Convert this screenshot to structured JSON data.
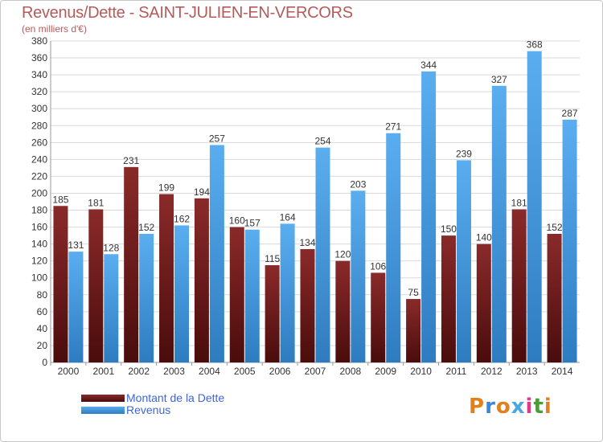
{
  "title": "Revenus/Dette - SAINT-JULIEN-EN-VERCORS",
  "unit_label": "(en milliers d'€)",
  "legend": [
    {
      "label": "Montant de la Dette",
      "color": "#7a1c1c"
    },
    {
      "label": "Revenus",
      "color": "#3f97dc"
    }
  ],
  "logo": {
    "text": "Proxiti",
    "colors": [
      "#e2801f",
      "#3a86d8",
      "#e2801f",
      "#49a8e0",
      "#e23a8a",
      "#4a9b3a",
      "#e2801f"
    ]
  },
  "chart_data": {
    "type": "bar",
    "title": "Revenus/Dette - SAINT-JULIEN-EN-VERCORS",
    "ylabel": "(en milliers d'€)",
    "xlabel": "",
    "categories": [
      "2000",
      "2001",
      "2002",
      "2003",
      "2004",
      "2005",
      "2006",
      "2007",
      "2008",
      "2009",
      "2010",
      "2011",
      "2012",
      "2013",
      "2014"
    ],
    "ylim": [
      0,
      380
    ],
    "ytick_step": 20,
    "grid": true,
    "series": [
      {
        "name": "Montant de la Dette",
        "color": "#7a1c1c",
        "values": [
          185,
          181,
          231,
          199,
          194,
          160,
          115,
          134,
          120,
          106,
          75,
          150,
          140,
          181,
          152
        ]
      },
      {
        "name": "Revenus",
        "color": "#3f97dc",
        "values": [
          131,
          128,
          152,
          162,
          257,
          157,
          164,
          254,
          203,
          271,
          344,
          239,
          327,
          368,
          287
        ]
      }
    ]
  }
}
